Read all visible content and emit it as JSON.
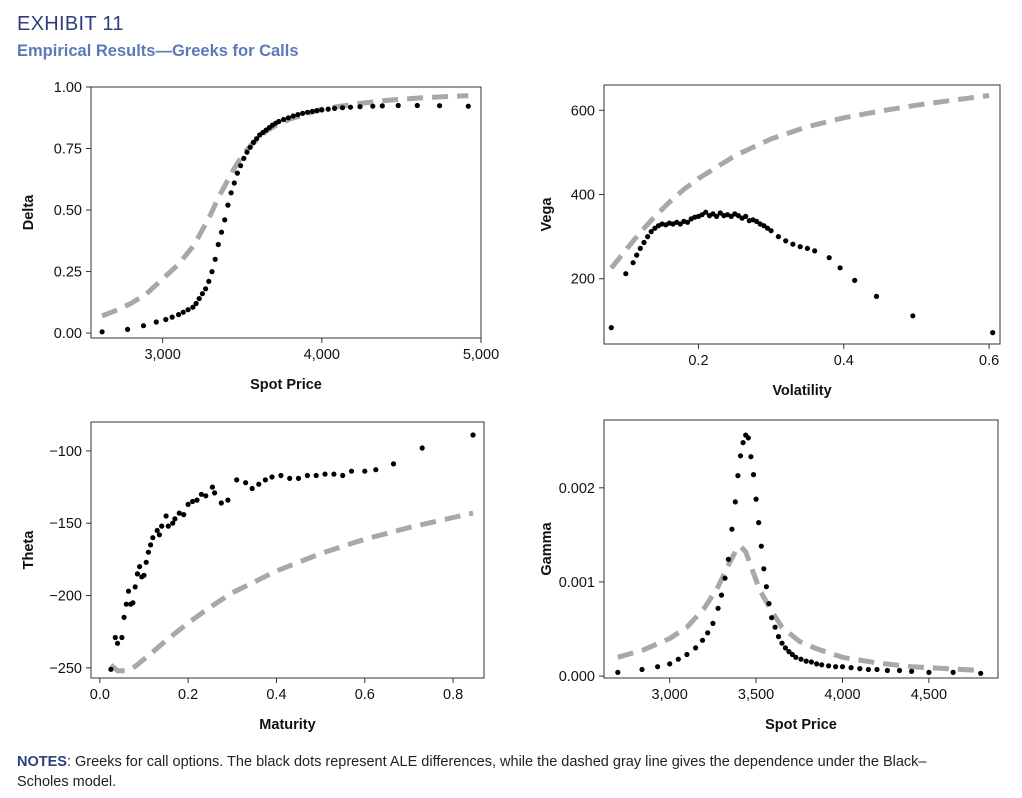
{
  "header": {
    "exhibit_title": "EXHIBIT 11",
    "subtitle": "Empirical Results—Greeks for Calls"
  },
  "notes": {
    "label": "NOTES",
    "text": ": Greeks for call options. The black dots represent ALE differences, while the dashed gray line gives the dependence under the Black–Scholes model."
  },
  "colors": {
    "title": "#2e3f7f",
    "subtitle": "#5b7ab6",
    "dots": "#000000",
    "dashed_line": "#a8a8a8"
  },
  "chart_data": [
    {
      "type": "scatter",
      "title": "",
      "xlabel": "Spot Price",
      "ylabel": "Delta",
      "xlim": [
        2550,
        5000
      ],
      "ylim": [
        -0.02,
        1.0
      ],
      "xticks": [
        {
          "v": 3000,
          "label": "3,000"
        },
        {
          "v": 4000,
          "label": "4,000"
        },
        {
          "v": 5000,
          "label": "5,000"
        }
      ],
      "yticks": [
        {
          "v": 0.0,
          "label": "0.00"
        },
        {
          "v": 0.25,
          "label": "0.25"
        },
        {
          "v": 0.5,
          "label": "0.50"
        },
        {
          "v": 0.75,
          "label": "0.75"
        },
        {
          "v": 1.0,
          "label": "1.00"
        }
      ],
      "grid": false,
      "series": [
        {
          "kind": "dots",
          "x": [
            2620,
            2780,
            2880,
            2960,
            3020,
            3060,
            3100,
            3130,
            3160,
            3190,
            3210,
            3230,
            3250,
            3270,
            3290,
            3310,
            3330,
            3350,
            3370,
            3390,
            3410,
            3430,
            3450,
            3470,
            3490,
            3510,
            3530,
            3550,
            3570,
            3590,
            3610,
            3630,
            3650,
            3670,
            3690,
            3710,
            3730,
            3760,
            3790,
            3820,
            3850,
            3880,
            3910,
            3940,
            3970,
            4000,
            4040,
            4080,
            4130,
            4180,
            4240,
            4320,
            4380,
            4480,
            4600,
            4740,
            4920
          ],
          "y": [
            0.005,
            0.015,
            0.03,
            0.045,
            0.055,
            0.065,
            0.075,
            0.085,
            0.095,
            0.105,
            0.12,
            0.14,
            0.16,
            0.18,
            0.21,
            0.25,
            0.3,
            0.36,
            0.41,
            0.46,
            0.52,
            0.57,
            0.61,
            0.65,
            0.68,
            0.71,
            0.735,
            0.755,
            0.775,
            0.79,
            0.805,
            0.815,
            0.825,
            0.835,
            0.845,
            0.853,
            0.86,
            0.868,
            0.875,
            0.882,
            0.888,
            0.893,
            0.897,
            0.901,
            0.904,
            0.907,
            0.91,
            0.913,
            0.916,
            0.918,
            0.92,
            0.922,
            0.923,
            0.925,
            0.925,
            0.924,
            0.922
          ]
        },
        {
          "kind": "dashed",
          "x": [
            2620,
            2700,
            2800,
            2900,
            3000,
            3100,
            3200,
            3250,
            3300,
            3350,
            3400,
            3450,
            3500,
            3550,
            3600,
            3650,
            3700,
            3800,
            3900,
            4000,
            4200,
            4400,
            4600,
            4800,
            4920
          ],
          "y": [
            0.07,
            0.09,
            0.12,
            0.16,
            0.22,
            0.28,
            0.36,
            0.42,
            0.48,
            0.55,
            0.61,
            0.67,
            0.72,
            0.76,
            0.79,
            0.82,
            0.84,
            0.87,
            0.89,
            0.91,
            0.93,
            0.945,
            0.955,
            0.962,
            0.965
          ]
        }
      ]
    },
    {
      "type": "scatter",
      "title": "",
      "xlabel": "Volatility",
      "ylabel": "Vega",
      "xlim": [
        0.07,
        0.615
      ],
      "ylim": [
        45,
        660
      ],
      "xticks": [
        {
          "v": 0.2,
          "label": "0.2"
        },
        {
          "v": 0.4,
          "label": "0.4"
        },
        {
          "v": 0.6,
          "label": "0.6"
        }
      ],
      "yticks": [
        {
          "v": 200,
          "label": "200"
        },
        {
          "v": 400,
          "label": "400"
        },
        {
          "v": 600,
          "label": "600"
        }
      ],
      "grid": false,
      "series": [
        {
          "kind": "dots",
          "x": [
            0.08,
            0.1,
            0.11,
            0.115,
            0.12,
            0.125,
            0.13,
            0.135,
            0.14,
            0.145,
            0.15,
            0.155,
            0.16,
            0.165,
            0.17,
            0.175,
            0.18,
            0.185,
            0.19,
            0.195,
            0.2,
            0.205,
            0.21,
            0.215,
            0.22,
            0.225,
            0.23,
            0.235,
            0.24,
            0.245,
            0.25,
            0.255,
            0.26,
            0.265,
            0.27,
            0.275,
            0.28,
            0.285,
            0.29,
            0.295,
            0.3,
            0.31,
            0.32,
            0.33,
            0.34,
            0.35,
            0.36,
            0.38,
            0.395,
            0.415,
            0.445,
            0.495,
            0.605
          ],
          "y": [
            84,
            212,
            238,
            256,
            272,
            286,
            300,
            312,
            320,
            326,
            330,
            328,
            332,
            330,
            334,
            330,
            336,
            334,
            342,
            346,
            348,
            352,
            358,
            350,
            354,
            348,
            356,
            350,
            352,
            348,
            354,
            350,
            344,
            348,
            338,
            340,
            336,
            330,
            326,
            320,
            314,
            300,
            290,
            282,
            276,
            272,
            266,
            250,
            226,
            196,
            158,
            112,
            72
          ]
        },
        {
          "kind": "dashed",
          "x": [
            0.08,
            0.1,
            0.12,
            0.14,
            0.16,
            0.18,
            0.2,
            0.25,
            0.3,
            0.35,
            0.4,
            0.45,
            0.5,
            0.55,
            0.6
          ],
          "y": [
            225,
            268,
            310,
            348,
            382,
            412,
            438,
            492,
            532,
            561,
            582,
            598,
            612,
            624,
            635
          ]
        }
      ]
    },
    {
      "type": "scatter",
      "title": "",
      "xlabel": "Maturity",
      "ylabel": "Theta",
      "xlim": [
        -0.02,
        0.87
      ],
      "ylim": [
        -257,
        -80
      ],
      "xticks": [
        {
          "v": 0.0,
          "label": "0.0"
        },
        {
          "v": 0.2,
          "label": "0.2"
        },
        {
          "v": 0.4,
          "label": "0.4"
        },
        {
          "v": 0.6,
          "label": "0.6"
        },
        {
          "v": 0.8,
          "label": "0.8"
        }
      ],
      "yticks": [
        {
          "v": -250,
          "label": "−250"
        },
        {
          "v": -200,
          "label": "−200"
        },
        {
          "v": -150,
          "label": "−150"
        },
        {
          "v": -100,
          "label": "−100"
        }
      ],
      "grid": false,
      "series": [
        {
          "kind": "dots",
          "x": [
            0.025,
            0.035,
            0.04,
            0.05,
            0.055,
            0.06,
            0.065,
            0.07,
            0.075,
            0.08,
            0.085,
            0.09,
            0.095,
            0.1,
            0.105,
            0.11,
            0.115,
            0.12,
            0.13,
            0.135,
            0.14,
            0.15,
            0.155,
            0.165,
            0.17,
            0.18,
            0.19,
            0.2,
            0.21,
            0.22,
            0.23,
            0.24,
            0.255,
            0.26,
            0.275,
            0.29,
            0.31,
            0.33,
            0.345,
            0.36,
            0.375,
            0.39,
            0.41,
            0.43,
            0.45,
            0.47,
            0.49,
            0.51,
            0.53,
            0.55,
            0.57,
            0.6,
            0.625,
            0.665,
            0.73,
            0.845
          ],
          "y": [
            -251,
            -229,
            -233,
            -229,
            -215,
            -206,
            -197,
            -206,
            -205,
            -194,
            -185,
            -180,
            -187,
            -186,
            -177,
            -170,
            -165,
            -160,
            -155,
            -158,
            -152,
            -145,
            -152,
            -150,
            -147,
            -143,
            -144,
            -137,
            -135,
            -134,
            -130,
            -131,
            -125,
            -129,
            -136,
            -134,
            -120,
            -122,
            -126,
            -123,
            -120,
            -118,
            -117,
            -119,
            -119,
            -117,
            -117,
            -116,
            -116,
            -117,
            -114,
            -114,
            -113,
            -109,
            -98,
            -89
          ]
        },
        {
          "kind": "dashed",
          "x": [
            0.025,
            0.04,
            0.06,
            0.08,
            0.1,
            0.12,
            0.15,
            0.2,
            0.25,
            0.3,
            0.4,
            0.5,
            0.6,
            0.7,
            0.8,
            0.845
          ],
          "y": [
            -248,
            -252,
            -252,
            -249,
            -244,
            -239,
            -231,
            -219,
            -208,
            -198,
            -183,
            -171,
            -161,
            -153,
            -146,
            -143
          ]
        }
      ]
    },
    {
      "type": "scatter",
      "title": "",
      "xlabel": "Spot Price",
      "ylabel": "Gamma",
      "xlim": [
        2620,
        4900
      ],
      "ylim": [
        -2e-05,
        0.00272
      ],
      "xticks": [
        {
          "v": 3000,
          "label": "3,000"
        },
        {
          "v": 3500,
          "label": "3,500"
        },
        {
          "v": 4000,
          "label": "4,000"
        },
        {
          "v": 4500,
          "label": "4,500"
        }
      ],
      "yticks": [
        {
          "v": 0.0,
          "label": "0.000"
        },
        {
          "v": 0.001,
          "label": "0.001"
        },
        {
          "v": 0.002,
          "label": "0.002"
        }
      ],
      "grid": false,
      "series": [
        {
          "kind": "dots",
          "x": [
            2700,
            2840,
            2930,
            3000,
            3050,
            3100,
            3150,
            3190,
            3220,
            3250,
            3280,
            3300,
            3320,
            3340,
            3360,
            3380,
            3395,
            3410,
            3425,
            3440,
            3455,
            3470,
            3485,
            3500,
            3515,
            3530,
            3545,
            3560,
            3575,
            3590,
            3610,
            3630,
            3650,
            3670,
            3690,
            3710,
            3730,
            3760,
            3790,
            3820,
            3850,
            3880,
            3920,
            3960,
            4000,
            4050,
            4100,
            4150,
            4200,
            4260,
            4330,
            4400,
            4500,
            4640,
            4800
          ],
          "y": [
            4e-05,
            7e-05,
            0.0001,
            0.00013,
            0.00018,
            0.00023,
            0.0003,
            0.00038,
            0.00046,
            0.00056,
            0.00072,
            0.00086,
            0.00104,
            0.00124,
            0.00156,
            0.00185,
            0.00213,
            0.00234,
            0.00248,
            0.00256,
            0.00253,
            0.00233,
            0.00214,
            0.00188,
            0.00163,
            0.00138,
            0.00114,
            0.00095,
            0.00077,
            0.00062,
            0.00052,
            0.00042,
            0.00035,
            0.0003,
            0.00026,
            0.00023,
            0.0002,
            0.00018,
            0.00016,
            0.00015,
            0.00013,
            0.00012,
            0.00011,
            0.0001,
            0.0001,
            9e-05,
            8e-05,
            7e-05,
            7e-05,
            6e-05,
            6e-05,
            5e-05,
            4e-05,
            4e-05,
            3e-05
          ]
        },
        {
          "kind": "dashed",
          "x": [
            2700,
            2850,
            3000,
            3100,
            3200,
            3280,
            3340,
            3380,
            3410,
            3440,
            3480,
            3520,
            3580,
            3650,
            3750,
            3850,
            4000,
            4200,
            4400,
            4600,
            4800
          ],
          "y": [
            0.0002,
            0.00028,
            0.0004,
            0.00052,
            0.00072,
            0.00095,
            0.00118,
            0.00132,
            0.00138,
            0.00132,
            0.00112,
            0.00092,
            0.00072,
            0.00052,
            0.00037,
            0.00029,
            0.0002,
            0.00014,
            0.0001,
            8e-05,
            6e-05
          ]
        }
      ]
    }
  ]
}
